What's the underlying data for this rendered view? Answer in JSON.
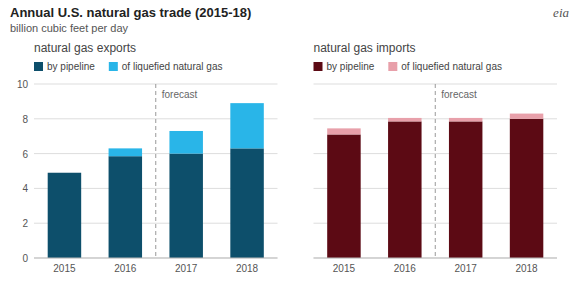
{
  "title": "Annual U.S. natural gas trade (2015-18)",
  "subtitle": "billion cubic feet per day",
  "annotations": [
    {
      "text": "eia"
    }
  ],
  "chart_data": [
    {
      "type": "bar",
      "title": "natural gas exports",
      "stacked": true,
      "grid": true,
      "legend": "top",
      "categories": [
        "2015",
        "2016",
        "2017",
        "2018"
      ],
      "series": [
        {
          "name": "by pipeline",
          "color": "#0d4f6b",
          "values": [
            4.9,
            5.85,
            6.0,
            6.3
          ]
        },
        {
          "name": "of liquefied natural gas",
          "color": "#29b5e8",
          "values": [
            0.0,
            0.45,
            1.3,
            2.6
          ]
        }
      ],
      "ylim": [
        0,
        10
      ],
      "yticks": [
        0,
        2,
        4,
        6,
        8,
        10
      ],
      "annotations": [
        {
          "text": "forecast",
          "x": "2017"
        }
      ]
    },
    {
      "type": "bar",
      "title": "natural gas imports",
      "stacked": true,
      "grid": true,
      "legend": "top",
      "tick_labels": "x",
      "categories": [
        "2015",
        "2016",
        "2017",
        "2018"
      ],
      "series": [
        {
          "name": "by pipeline",
          "color": "#5c0a14",
          "values": [
            7.1,
            7.85,
            7.85,
            8.0
          ]
        },
        {
          "name": "of liquefied natural gas",
          "color": "#e8a0aa",
          "values": [
            0.35,
            0.2,
            0.2,
            0.3
          ]
        }
      ],
      "ylim": [
        0,
        10
      ],
      "yticks": [
        0,
        2,
        4,
        6,
        8,
        10
      ],
      "annotations": [
        {
          "text": "forecast",
          "x": "2017"
        }
      ]
    }
  ]
}
